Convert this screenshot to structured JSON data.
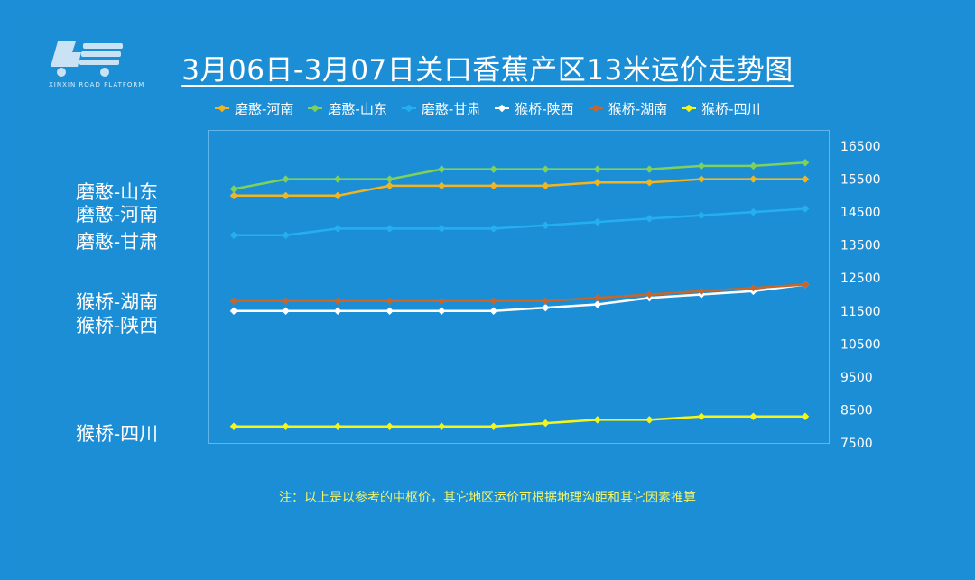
{
  "title": "3月06日-3月07日关口香蕉产区13米运价走势图",
  "logo": {
    "name": "logo",
    "caption": "XINXIN ROAD PLATFORM"
  },
  "side_labels": [
    "磨憨-山东",
    "磨憨-河南",
    "磨憨-甘肃",
    "猴桥-湖南",
    "猴桥-陕西",
    "猴桥-四川"
  ],
  "note": "注：以上是以参考的中枢价，其它地区运价可根据地理沟距和其它因素推算",
  "chart_data": {
    "type": "line",
    "title": "3月06日-3月07日关口香蕉产区13米运价走势图",
    "xlabel": "",
    "ylabel": "",
    "ylim": [
      7500,
      16500
    ],
    "yticks": [
      16500,
      15500,
      14500,
      13500,
      12500,
      11500,
      10500,
      9500,
      8500,
      7500
    ],
    "y_axis_position": "right",
    "legend_position": "top",
    "grid": false,
    "x": [
      1,
      2,
      3,
      4,
      5,
      6,
      7,
      8,
      9,
      10,
      11,
      12
    ],
    "series": [
      {
        "name": "磨憨-河南",
        "color": "#f2b51f",
        "values": [
          15000,
          15000,
          15000,
          15300,
          15300,
          15300,
          15300,
          15400,
          15400,
          15500,
          15500,
          15500
        ]
      },
      {
        "name": "磨憨-山东",
        "color": "#7ed15a",
        "values": [
          15200,
          15500,
          15500,
          15500,
          15800,
          15800,
          15800,
          15800,
          15800,
          15900,
          15900,
          16000
        ]
      },
      {
        "name": "磨憨-甘肃",
        "color": "#24b0f0",
        "values": [
          13800,
          13800,
          14000,
          14000,
          14000,
          14000,
          14100,
          14200,
          14300,
          14400,
          14500,
          14600
        ]
      },
      {
        "name": "猴桥-陕西",
        "color": "#ffffff",
        "values": [
          11500,
          11500,
          11500,
          11500,
          11500,
          11500,
          11600,
          11700,
          11900,
          12000,
          12100,
          12300
        ]
      },
      {
        "name": "猴桥-湖南",
        "color": "#c8662a",
        "values": [
          11800,
          11800,
          11800,
          11800,
          11800,
          11800,
          11800,
          11900,
          12000,
          12100,
          12200,
          12300
        ]
      },
      {
        "name": "猴桥-四川",
        "color": "#f4f51c",
        "values": [
          8000,
          8000,
          8000,
          8000,
          8000,
          8000,
          8100,
          8200,
          8200,
          8300,
          8300,
          8300
        ]
      }
    ]
  }
}
